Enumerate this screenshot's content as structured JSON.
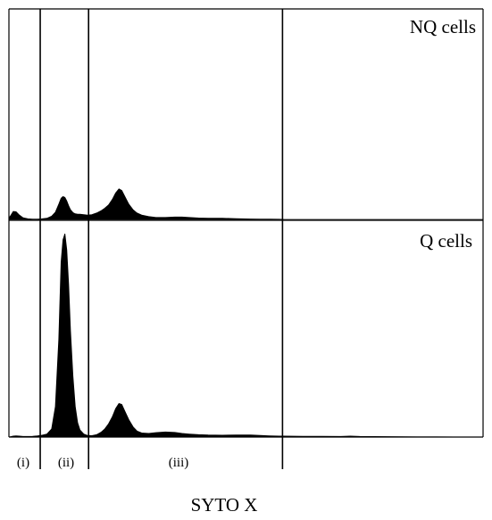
{
  "chart_data": {
    "type": "area",
    "xlabel": "SYTO X",
    "ylabel": "",
    "xlim": [
      0,
      100
    ],
    "grid": false,
    "gate_boundaries": [
      6.6,
      16.8,
      57.7
    ],
    "regions": [
      {
        "label": "(i)",
        "center": 3.0
      },
      {
        "label": "(ii)",
        "center": 11.7
      },
      {
        "label": "(iii)",
        "center": 35.0
      }
    ],
    "x": [
      0,
      0.4,
      0.9,
      1.5,
      2.2,
      3.0,
      4.0,
      5.0,
      6.0,
      7.0,
      8.0,
      9.0,
      9.8,
      10.5,
      11.0,
      11.4,
      11.8,
      12.2,
      12.6,
      13.0,
      13.5,
      14.0,
      14.5,
      15.0,
      15.8,
      16.6,
      17.5,
      18.5,
      19.5,
      20.2,
      21.0,
      21.8,
      22.5,
      23.2,
      23.8,
      24.5,
      25.3,
      26.2,
      27.0,
      28.0,
      29.5,
      31.0,
      33.0,
      35.0,
      36.5,
      38.0,
      40.0,
      42.0,
      45.0,
      48.0,
      51.0,
      53.0,
      55.0,
      57.0,
      58.0,
      62.0,
      66.0,
      70.0,
      72.0,
      74.0,
      80.0,
      86.0,
      90.0,
      95.0,
      100.0
    ],
    "series": [
      {
        "name": "NQ cells",
        "values": [
          2.0,
          5.0,
          10.0,
          9.5,
          5.5,
          2.0,
          0.8,
          0.5,
          0.5,
          0.8,
          1.5,
          4.0,
          9.0,
          19.0,
          26.5,
          28.5,
          27.5,
          23.0,
          17.0,
          12.0,
          8.5,
          7.0,
          6.5,
          6.5,
          6.0,
          5.5,
          6.0,
          8.0,
          11.0,
          14.0,
          18.0,
          25.0,
          33.0,
          38.0,
          36.0,
          28.0,
          19.0,
          12.0,
          8.0,
          5.5,
          3.5,
          2.5,
          2.5,
          3.0,
          3.0,
          2.5,
          1.8,
          1.5,
          1.5,
          1.0,
          0.6,
          0.4,
          0.3,
          0.2,
          0.0,
          0.0,
          0.0,
          0.0,
          0.0,
          0.0,
          0.0,
          0.0,
          0.0,
          0.0,
          0.0
        ],
        "color": "#000000"
      },
      {
        "name": "Q cells",
        "values": [
          0.0,
          0.2,
          0.5,
          0.6,
          0.5,
          0.3,
          0.3,
          0.4,
          0.6,
          0.9,
          1.5,
          4.0,
          15.0,
          48.0,
          86.0,
          97.0,
          100.0,
          92.0,
          75.0,
          52.0,
          30.0,
          15.0,
          7.0,
          3.5,
          1.5,
          0.8,
          0.7,
          1.2,
          2.5,
          4.0,
          6.5,
          10.0,
          14.0,
          16.5,
          16.0,
          12.5,
          8.5,
          5.0,
          3.0,
          2.0,
          1.8,
          2.2,
          2.5,
          2.3,
          1.8,
          1.5,
          1.2,
          1.0,
          0.9,
          1.0,
          1.0,
          0.8,
          0.6,
          0.5,
          0.5,
          0.4,
          0.4,
          0.3,
          0.5,
          0.3,
          0.2,
          0.1,
          0.1,
          0.0,
          0.0
        ],
        "color": "#000000"
      }
    ]
  }
}
